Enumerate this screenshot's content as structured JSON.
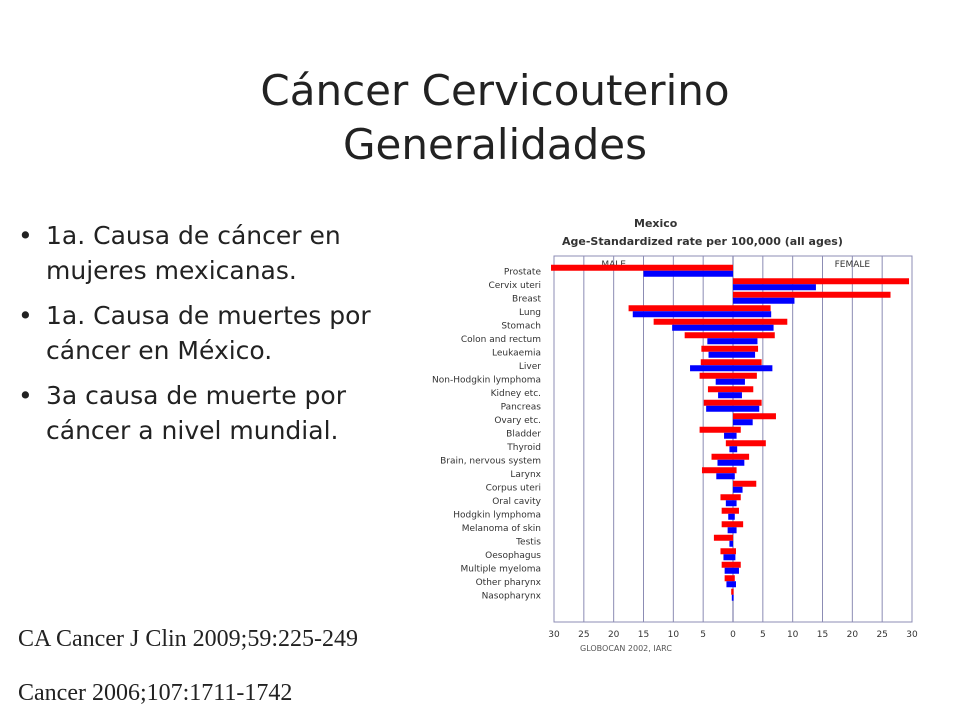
{
  "slide": {
    "title_lines": [
      "Cáncer Cervicouterino",
      "Generalidades"
    ],
    "bullets": [
      "1a. Causa de cáncer en mujeres mexicanas.",
      "1a. Causa de muertes por cáncer en México.",
      "3a causa de muerte por cáncer a nivel mundial."
    ],
    "references": [
      "CA Cancer J Clin 2009;59:225-249",
      "Cancer 2006;107:1711-1742"
    ]
  },
  "chart_data": {
    "type": "bar",
    "orientation": "horizontal",
    "title": "Mexico",
    "subtitle": "Age-Standardized rate per 100,000 (all ages)",
    "left_label": "MALE",
    "right_label": "FEMALE",
    "source": "GLOBOCAN 2002, IARC",
    "xlim": [
      -30,
      30
    ],
    "xticks": [
      30,
      25,
      20,
      15,
      10,
      5,
      0,
      5,
      10,
      15,
      20,
      25,
      30
    ],
    "grid": true,
    "colors": {
      "incidence": "#ff0000",
      "mortality": "#0000ff"
    },
    "categories": [
      "Prostate",
      "Cervix uteri",
      "Breast",
      "Lung",
      "Stomach",
      "Colon and rectum",
      "Leukaemia",
      "Liver",
      "Non-Hodgkin lymphoma",
      "Kidney etc.",
      "Pancreas",
      "Ovary etc.",
      "Bladder",
      "Thyroid",
      "Brain, nervous system",
      "Larynx",
      "Corpus uteri",
      "Oral cavity",
      "Hodgkin lymphoma",
      "Melanoma of skin",
      "Testis",
      "Oesophagus",
      "Multiple myeloma",
      "Other pharynx",
      "Nasopharynx"
    ],
    "male_incidence": [
      30.5,
      0,
      0,
      17.5,
      13.3,
      8.1,
      5.3,
      5.4,
      5.6,
      4.2,
      4.9,
      0,
      5.6,
      1.2,
      3.6,
      5.2,
      0,
      2.1,
      1.9,
      1.9,
      3.2,
      2.1,
      1.9,
      1.4,
      0.3
    ],
    "male_mortality": [
      15.0,
      0,
      0,
      16.8,
      10.2,
      4.3,
      4.1,
      7.2,
      2.9,
      2.5,
      4.5,
      0,
      1.5,
      0.6,
      2.6,
      2.8,
      0,
      1.2,
      0.8,
      0.9,
      0.6,
      1.6,
      1.4,
      1.1,
      0.2
    ],
    "female_incidence": [
      0,
      29.5,
      26.4,
      6.3,
      9.1,
      7.0,
      4.2,
      4.8,
      4.0,
      3.4,
      4.8,
      7.2,
      1.3,
      5.5,
      2.7,
      0.6,
      3.9,
      1.3,
      1.0,
      1.7,
      0,
      0.5,
      1.3,
      0.3,
      0.1
    ],
    "female_mortality": [
      0,
      13.9,
      10.3,
      6.4,
      6.8,
      4.1,
      3.7,
      6.6,
      2.0,
      1.5,
      4.4,
      3.3,
      0.6,
      0.7,
      1.9,
      0.3,
      1.6,
      0.6,
      0.3,
      0.6,
      0,
      0.4,
      1.0,
      0.5,
      0.1
    ]
  }
}
